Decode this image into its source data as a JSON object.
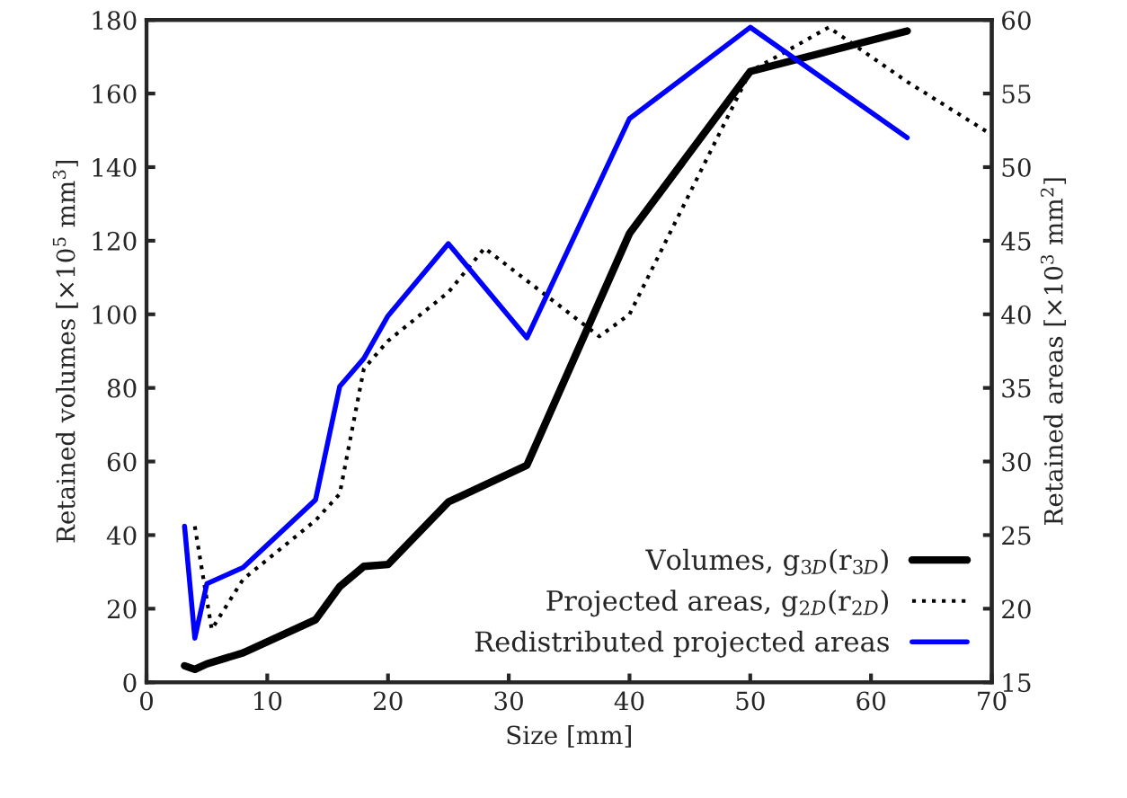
{
  "chart_data": {
    "type": "line",
    "xlabel": "Size [mm]",
    "ylabel": "Retained volumes [×10$^{5}$ mm$^{3}$]",
    "y2label": "Retained areas [×10$^{3}$ mm$^{2}$]",
    "xlim": [
      0,
      70
    ],
    "xticks": [
      0,
      10,
      20,
      30,
      40,
      50,
      60,
      70
    ],
    "ylim": [
      0,
      180
    ],
    "yticks": [
      0,
      20,
      40,
      60,
      80,
      100,
      120,
      140,
      160,
      180
    ],
    "y2lim": [
      15,
      60
    ],
    "y2ticks": [
      15,
      20,
      25,
      30,
      35,
      40,
      45,
      50,
      55,
      60
    ],
    "grid": false,
    "legend": "bottom right",
    "series": [
      {
        "name": "Volumes, g$_{3D}$(r$_{3D}$)",
        "color": "#000000",
        "line_style": "solid",
        "x": [
          3.15,
          4,
          5,
          8,
          14,
          16,
          18,
          20,
          25,
          31.5,
          40,
          50,
          63
        ],
        "values": [
          4.5,
          3.5,
          5,
          8,
          17,
          26,
          31.5,
          32,
          49,
          59,
          122,
          166,
          177
        ]
      },
      {
        "name": "Projected areas, g$_{2D}$(r$_{2D}$)",
        "color": "#000000",
        "line_style": "dotted",
        "axis": "y2",
        "x": [
          4,
          5.4,
          8,
          14,
          16,
          18,
          20,
          25,
          28,
          37.5,
          40,
          50,
          56.5,
          63,
          70
        ],
        "values": [
          25.6,
          18.6,
          22,
          26,
          27.8,
          36.3,
          38.2,
          41.5,
          44.5,
          38.5,
          40,
          56.5,
          59.5,
          55.8,
          52.2
        ]
      },
      {
        "name": "Redistributed projected areas",
        "color": "#0000ff",
        "line_style": "solid",
        "axis": "y2",
        "x": [
          3.15,
          4,
          5,
          8,
          14,
          16,
          18,
          20,
          25,
          31.5,
          40,
          50,
          63
        ],
        "values": [
          25.6,
          18,
          21.7,
          22.8,
          27.4,
          35.1,
          37,
          39.9,
          44.8,
          38.4,
          53.3,
          59.5,
          52
        ]
      }
    ]
  }
}
